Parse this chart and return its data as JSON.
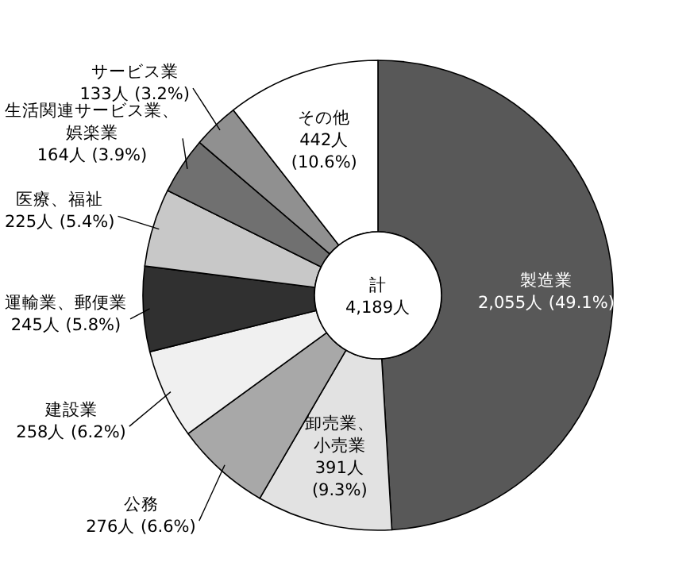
{
  "chart_data": {
    "type": "donut",
    "categories": [
      "製造業",
      "卸売業、小売業",
      "公務",
      "建設業",
      "運輸業、郵便業",
      "医療、福祉",
      "生活関連サービス業、娯楽業",
      "サービス業",
      "その他"
    ],
    "values": [
      2055,
      391,
      276,
      258,
      245,
      225,
      164,
      133,
      442
    ],
    "colors": [
      "#585858",
      "#e2e2e2",
      "#a8a8a8",
      "#f0f0f0",
      "#303030",
      "#c8c8c8",
      "#707070",
      "#909090",
      "#ffffff"
    ],
    "value_labels": [
      "2,055人 (49.1%)",
      "391人 (9.3%)",
      "276人 (6.6%)",
      "258人 (6.2%)",
      "245人 (5.8%)",
      "225人 (5.4%)",
      "164人 (3.9%)",
      "133人 (3.2%)",
      "442人 (10.6%)"
    ],
    "annotations": [
      "計",
      "4,189人"
    ]
  }
}
